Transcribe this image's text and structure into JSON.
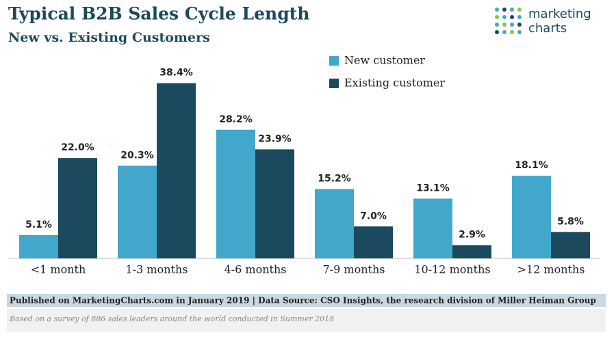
{
  "chart_data": {
    "type": "bar",
    "title": "Typical B2B Sales Cycle Length",
    "subtitle": "New vs. Existing Customers",
    "categories": [
      "<1 month",
      "1-3 months",
      "4-6 months",
      "7-9 months",
      "10-12 months",
      ">12 months"
    ],
    "series": [
      {
        "name": "New customer",
        "color": "#41a8cc",
        "values": [
          5.1,
          20.3,
          28.2,
          15.2,
          13.1,
          18.1
        ],
        "value_labels": [
          "5.1%",
          "20.3%",
          "28.2%",
          "15.2%",
          "13.1%",
          "18.1%"
        ]
      },
      {
        "name": "Existing customer",
        "color": "#1b4a5e",
        "values": [
          22.0,
          38.4,
          23.9,
          7.0,
          2.9,
          5.8
        ],
        "value_labels": [
          "22.0%",
          "38.4%",
          "23.9%",
          "7.0%",
          "2.9%",
          "5.8%"
        ]
      }
    ],
    "ylim": [
      0,
      40
    ],
    "legend": "top-right",
    "source": "Published on MarketingCharts.com in January 2019 | Data Source: CSO Insights, the research division of Miller Heiman Group",
    "note": "Based on a survey of 886 sales leaders around the world conducted in Summer 2018",
    "logo": [
      "marketing",
      "charts"
    ]
  }
}
